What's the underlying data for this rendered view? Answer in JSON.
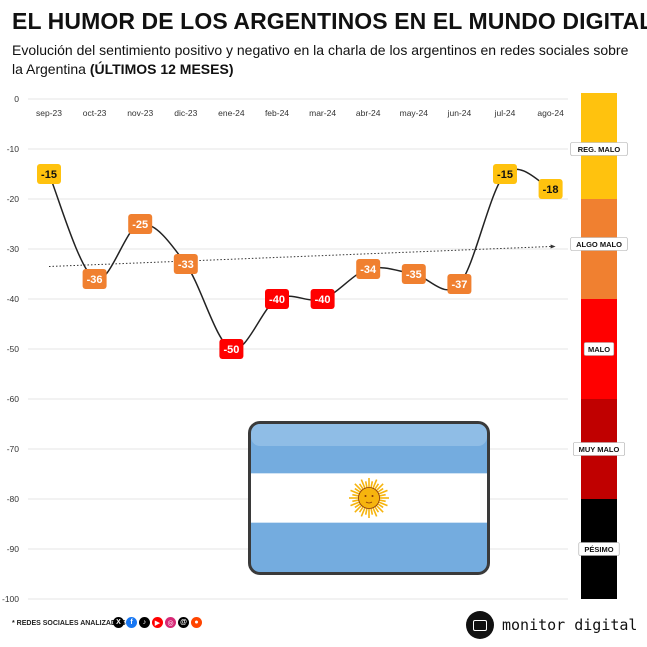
{
  "title": "EL HUMOR DE LOS ARGENTINOS EN EL MUNDO DIGITAL",
  "subtitle": "Evolución del sentimiento positivo y negativo en la charla de los argentinos en redes sociales sobre la Argentina",
  "subtitle_bold": "(ÚLTIMOS 12 MESES)",
  "chart_data": {
    "type": "line",
    "categories": [
      "sep-23",
      "oct-23",
      "nov-23",
      "dic-23",
      "ene-24",
      "feb-24",
      "mar-24",
      "abr-24",
      "may-24",
      "jun-24",
      "jul-24",
      "ago-24"
    ],
    "values": [
      -15,
      -36,
      -25,
      -33,
      -50,
      -40,
      -40,
      -34,
      -35,
      -37,
      -15,
      -18
    ],
    "y_ticks": [
      "0",
      "-10",
      "-20",
      "-30",
      "-40",
      "-50",
      "-60",
      "-70",
      "-80",
      "-90",
      "-100"
    ],
    "ylim": [
      -100,
      0
    ],
    "grid": true,
    "trendline": {
      "style": "dotted",
      "start": -33.5,
      "end": -29.5
    },
    "bands": [
      {
        "label": "REG. MALO",
        "from": -20,
        "to": 0,
        "color": "#FFC20E"
      },
      {
        "label": "ALGO MALO",
        "from": -40,
        "to": -20,
        "color": "#F08030"
      },
      {
        "label": "MALO",
        "from": -60,
        "to": -40,
        "color": "#FF0000"
      },
      {
        "label": "MUY MALO",
        "from": -80,
        "to": -60,
        "color": "#C00000"
      },
      {
        "label": "PÉSIMO",
        "from": -100,
        "to": -80,
        "color": "#000000"
      }
    ],
    "point_colors": [
      "#FFC20E",
      "#F08030",
      "#F08030",
      "#F08030",
      "#FF0000",
      "#FF0000",
      "#FF0000",
      "#F08030",
      "#F08030",
      "#F08030",
      "#FFC20E",
      "#FFC20E"
    ]
  },
  "flag": {
    "stripe_colors": [
      "#74ACDF",
      "#FFFFFF",
      "#74ACDF"
    ],
    "sun_color": "#F6B40E"
  },
  "footer": {
    "note": "* REDES SOCIALES ANALIZADAS",
    "social_icons": [
      {
        "name": "x-icon",
        "glyph": "X",
        "color": "#000000"
      },
      {
        "name": "facebook-icon",
        "glyph": "f",
        "color": "#1877F2"
      },
      {
        "name": "tiktok-icon",
        "glyph": "♪",
        "color": "#000000"
      },
      {
        "name": "youtube-icon",
        "glyph": "▶",
        "color": "#FF0000"
      },
      {
        "name": "instagram-icon",
        "glyph": "◎",
        "color": "#D62976"
      },
      {
        "name": "threads-icon",
        "glyph": "@",
        "color": "#000000"
      },
      {
        "name": "reddit-icon",
        "glyph": "●",
        "color": "#FF4500"
      }
    ],
    "brand": "monitor digital"
  }
}
